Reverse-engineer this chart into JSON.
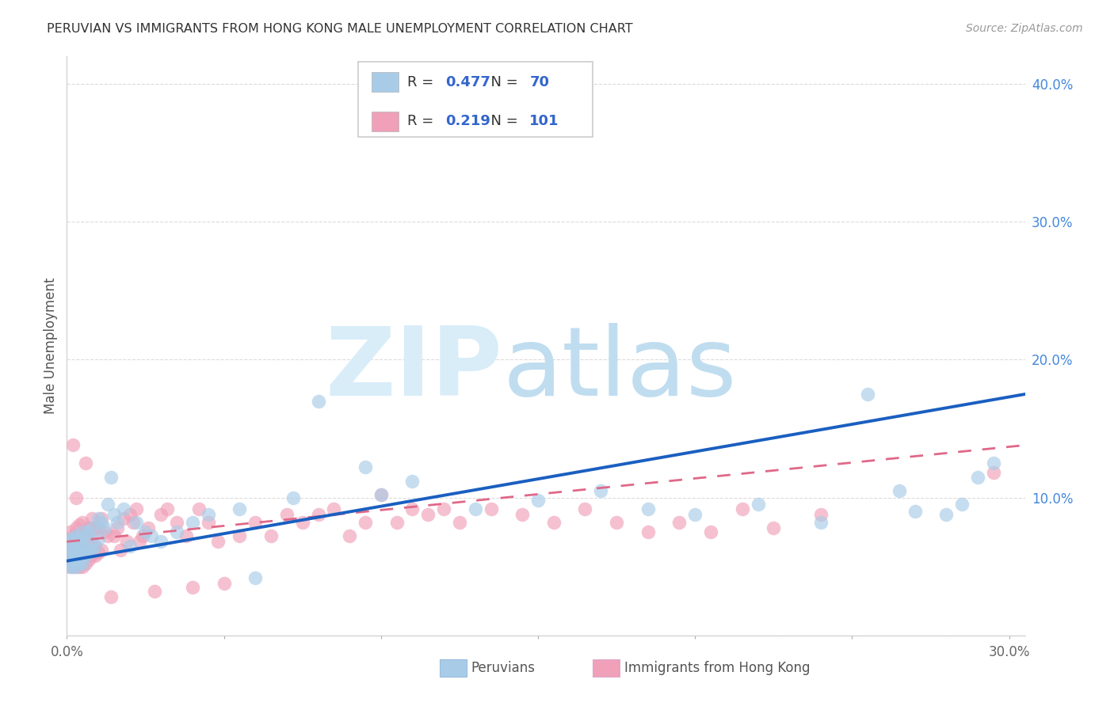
{
  "title": "PERUVIAN VS IMMIGRANTS FROM HONG KONG MALE UNEMPLOYMENT CORRELATION CHART",
  "source": "Source: ZipAtlas.com",
  "ylabel": "Male Unemployment",
  "x_min": 0.0,
  "x_max": 0.305,
  "y_min": 0.0,
  "y_max": 0.42,
  "color_peruvians": "#a8cce8",
  "color_hk": "#f0a0b8",
  "color_line_peruvians": "#1a5fc0",
  "color_line_hk": "#e06888",
  "background_color": "#ffffff",
  "grid_color": "#cccccc",
  "title_color": "#333333",
  "source_color": "#999999",
  "r_peruvians": 0.477,
  "n_peruvians": 70,
  "r_hk": 0.219,
  "n_hk": 101,
  "legend_peruvians_label": "Peruvians",
  "legend_hk_label": "Immigrants from Hong Kong",
  "peruvians_x": [
    0.001,
    0.001,
    0.001,
    0.001,
    0.002,
    0.002,
    0.002,
    0.002,
    0.002,
    0.003,
    0.003,
    0.003,
    0.003,
    0.003,
    0.003,
    0.004,
    0.004,
    0.004,
    0.004,
    0.005,
    0.005,
    0.005,
    0.005,
    0.005,
    0.006,
    0.006,
    0.006,
    0.007,
    0.007,
    0.008,
    0.008,
    0.009,
    0.01,
    0.01,
    0.011,
    0.012,
    0.013,
    0.014,
    0.015,
    0.016,
    0.018,
    0.02,
    0.022,
    0.025,
    0.027,
    0.03,
    0.035,
    0.04,
    0.045,
    0.055,
    0.06,
    0.072,
    0.08,
    0.095,
    0.1,
    0.11,
    0.13,
    0.15,
    0.17,
    0.185,
    0.2,
    0.22,
    0.24,
    0.255,
    0.265,
    0.27,
    0.28,
    0.285,
    0.29,
    0.295
  ],
  "peruvians_y": [
    0.05,
    0.055,
    0.06,
    0.07,
    0.05,
    0.055,
    0.06,
    0.065,
    0.07,
    0.05,
    0.055,
    0.058,
    0.062,
    0.068,
    0.072,
    0.052,
    0.056,
    0.06,
    0.068,
    0.052,
    0.058,
    0.062,
    0.068,
    0.075,
    0.058,
    0.065,
    0.072,
    0.06,
    0.075,
    0.062,
    0.078,
    0.065,
    0.07,
    0.085,
    0.082,
    0.078,
    0.095,
    0.115,
    0.088,
    0.082,
    0.092,
    0.065,
    0.082,
    0.075,
    0.072,
    0.068,
    0.075,
    0.082,
    0.088,
    0.092,
    0.042,
    0.1,
    0.17,
    0.122,
    0.102,
    0.112,
    0.092,
    0.098,
    0.105,
    0.092,
    0.088,
    0.095,
    0.082,
    0.175,
    0.105,
    0.09,
    0.088,
    0.095,
    0.115,
    0.125
  ],
  "hk_x": [
    0.001,
    0.001,
    0.001,
    0.001,
    0.001,
    0.002,
    0.002,
    0.002,
    0.002,
    0.002,
    0.002,
    0.003,
    0.003,
    0.003,
    0.003,
    0.003,
    0.003,
    0.003,
    0.004,
    0.004,
    0.004,
    0.004,
    0.004,
    0.004,
    0.005,
    0.005,
    0.005,
    0.005,
    0.005,
    0.005,
    0.006,
    0.006,
    0.006,
    0.006,
    0.006,
    0.007,
    0.007,
    0.007,
    0.007,
    0.008,
    0.008,
    0.008,
    0.008,
    0.009,
    0.009,
    0.009,
    0.01,
    0.01,
    0.011,
    0.011,
    0.012,
    0.013,
    0.014,
    0.015,
    0.016,
    0.017,
    0.018,
    0.019,
    0.02,
    0.021,
    0.022,
    0.023,
    0.024,
    0.026,
    0.028,
    0.03,
    0.032,
    0.035,
    0.038,
    0.04,
    0.042,
    0.045,
    0.048,
    0.05,
    0.055,
    0.06,
    0.065,
    0.07,
    0.075,
    0.08,
    0.085,
    0.09,
    0.095,
    0.1,
    0.105,
    0.11,
    0.115,
    0.12,
    0.125,
    0.135,
    0.145,
    0.155,
    0.165,
    0.175,
    0.185,
    0.195,
    0.205,
    0.215,
    0.225,
    0.24,
    0.295
  ],
  "hk_y": [
    0.05,
    0.055,
    0.06,
    0.068,
    0.075,
    0.05,
    0.055,
    0.06,
    0.065,
    0.072,
    0.138,
    0.05,
    0.055,
    0.06,
    0.065,
    0.072,
    0.078,
    0.1,
    0.05,
    0.055,
    0.06,
    0.065,
    0.072,
    0.08,
    0.05,
    0.055,
    0.06,
    0.065,
    0.072,
    0.082,
    0.052,
    0.058,
    0.064,
    0.072,
    0.125,
    0.055,
    0.06,
    0.068,
    0.078,
    0.058,
    0.065,
    0.072,
    0.085,
    0.058,
    0.065,
    0.078,
    0.06,
    0.078,
    0.062,
    0.085,
    0.075,
    0.072,
    0.028,
    0.072,
    0.078,
    0.062,
    0.085,
    0.068,
    0.088,
    0.082,
    0.092,
    0.068,
    0.072,
    0.078,
    0.032,
    0.088,
    0.092,
    0.082,
    0.072,
    0.035,
    0.092,
    0.082,
    0.068,
    0.038,
    0.072,
    0.082,
    0.072,
    0.088,
    0.082,
    0.088,
    0.092,
    0.072,
    0.082,
    0.102,
    0.082,
    0.092,
    0.088,
    0.092,
    0.082,
    0.092,
    0.088,
    0.082,
    0.092,
    0.082,
    0.075,
    0.082,
    0.075,
    0.092,
    0.078,
    0.088,
    0.118
  ]
}
